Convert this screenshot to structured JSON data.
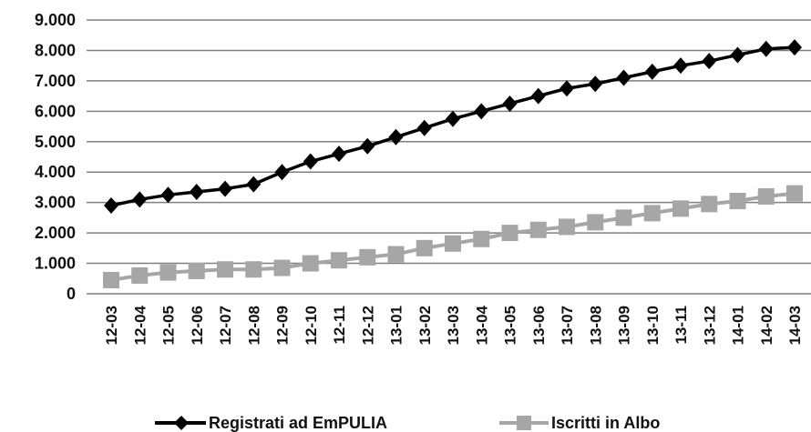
{
  "chart_data": {
    "type": "line",
    "x": [
      "12-03",
      "12-04",
      "12-05",
      "12-06",
      "12-07",
      "12-08",
      "12-09",
      "12-10",
      "12-11",
      "12-12",
      "13-01",
      "13-02",
      "13-03",
      "13-04",
      "13-05",
      "13-06",
      "13-07",
      "13-08",
      "13-09",
      "13-10",
      "13-11",
      "13-12",
      "14-01",
      "14-02",
      "14-03"
    ],
    "y_ticks": [
      "0",
      "1.000",
      "2.000",
      "3.000",
      "4.000",
      "5.000",
      "6.000",
      "7.000",
      "8.000",
      "9.000"
    ],
    "ylim": [
      0,
      9000
    ],
    "grid": true,
    "legend_position": "bottom",
    "series": [
      {
        "name": "Registrati ad EmPULIA",
        "color": "#000000",
        "marker": "diamond",
        "values": [
          2900,
          3100,
          3250,
          3350,
          3450,
          3600,
          4000,
          4350,
          4600,
          4850,
          5150,
          5450,
          5750,
          6000,
          6250,
          6500,
          6750,
          6900,
          7100,
          7300,
          7500,
          7650,
          7850,
          8050,
          8100
        ]
      },
      {
        "name": "Iscritti in Albo",
        "color": "#a6a6a6",
        "marker": "square",
        "values": [
          450,
          600,
          700,
          750,
          800,
          800,
          850,
          1000,
          1100,
          1200,
          1300,
          1500,
          1650,
          1800,
          2000,
          2100,
          2200,
          2350,
          2500,
          2650,
          2800,
          2950,
          3050,
          3200,
          3300
        ]
      }
    ]
  }
}
